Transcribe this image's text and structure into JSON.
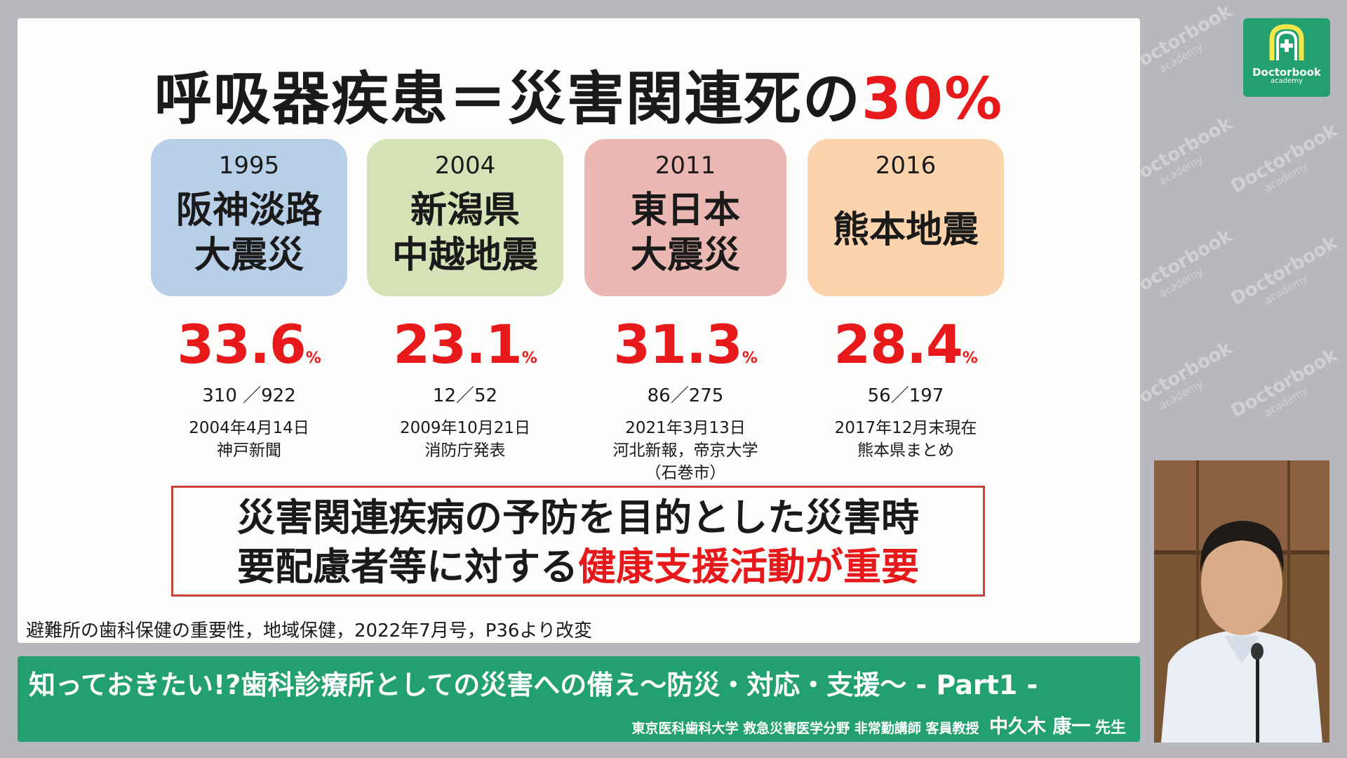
{
  "title": {
    "main": "呼吸器疾患＝災害関連死の",
    "highlight": "30%"
  },
  "earthquakes": [
    {
      "year": "1995",
      "name": "阪神淡路\n大震災",
      "color": "#b8cfe8",
      "pct": "33.6",
      "pct_unit": "%",
      "ratio": "310 ／922",
      "source": "2004年4月14日\n神戸新聞"
    },
    {
      "year": "2004",
      "name": "新潟県\n中越地震",
      "color": "#d5e2b5",
      "pct": "23.1",
      "pct_unit": "%",
      "ratio": "12／52",
      "source": "2009年10月21日\n消防庁発表"
    },
    {
      "year": "2011",
      "name": "東日本\n大震災",
      "color": "#eab7b3",
      "pct": "31.3",
      "pct_unit": "%",
      "ratio": "86／275",
      "source": "2021年3月13日\n河北新報，帝京大学\n（石巻市）"
    },
    {
      "year": "2016",
      "name": "熊本地震",
      "color": "#fbd3ad",
      "pct": "28.4",
      "pct_unit": "%",
      "ratio": "56／197",
      "source": "2017年12月末現在\n熊本県まとめ"
    }
  ],
  "message": {
    "line1": "災害関連疾病の予防を目的とした災害時",
    "line2_black": "要配慮者等に対する",
    "line2_red": "健康支援活動が重要"
  },
  "citation": "避難所の歯科保健の重要性，地域保健，2022年7月号，P36より改変",
  "banner": {
    "title": "知っておきたい!?歯科診療所としての災害への備え〜防災・対応・支援〜 - Part1 -",
    "affiliation": "東京医科歯科大学 救急災害医学分野 非常勤講師 客員教授",
    "name": "中久木 康一",
    "honorific": "先生"
  },
  "logo": {
    "brand": "Doctorbook",
    "sub": "academy"
  },
  "watermark": {
    "brand": "Doctorbook",
    "sub": "academy"
  },
  "colors": {
    "accent_red": "#e8191b",
    "banner_green": "#23a06f"
  }
}
